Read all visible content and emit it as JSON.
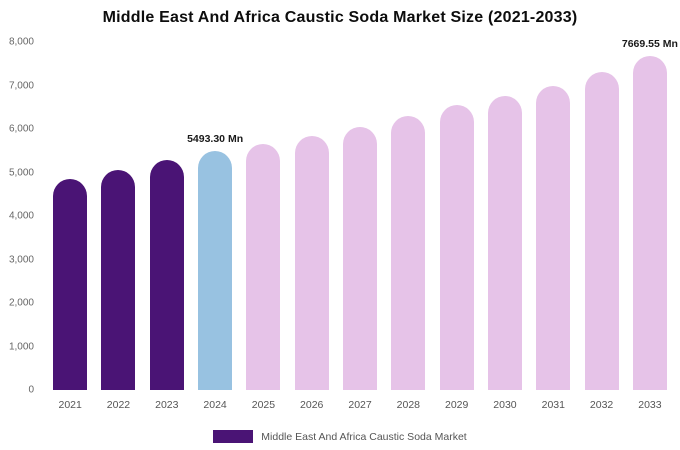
{
  "title": "Middle East And Africa Caustic Soda Market Size (2021-2033)",
  "legend": {
    "label": "Middle East And Africa Caustic Soda Market",
    "swatch_color": "#4A1475"
  },
  "colors": {
    "historical": "#4A1475",
    "current": "#98C2E1",
    "forecast": "#E6C3E8"
  },
  "chart_data": {
    "type": "bar",
    "title": "Middle East And Africa Caustic Soda Market Size (2021-2033)",
    "xlabel": "",
    "ylabel": "",
    "categories": [
      "2021",
      "2022",
      "2023",
      "2024",
      "2025",
      "2026",
      "2027",
      "2028",
      "2029",
      "2030",
      "2031",
      "2032",
      "2033"
    ],
    "values": [
      4850,
      5060,
      5280,
      5493.3,
      5650,
      5840,
      6050,
      6300,
      6550,
      6760,
      7000,
      7320,
      7669.55
    ],
    "series_colors": [
      "historical",
      "historical",
      "historical",
      "current",
      "forecast",
      "forecast",
      "forecast",
      "forecast",
      "forecast",
      "forecast",
      "forecast",
      "forecast",
      "forecast"
    ],
    "annotations": [
      {
        "category": "2024",
        "text": "5493.30 Mn"
      },
      {
        "category": "2033",
        "text": "7669.55 Mn"
      }
    ],
    "ylim": [
      0,
      8000
    ],
    "yticks": [
      0,
      1000,
      2000,
      3000,
      4000,
      5000,
      6000,
      7000,
      8000
    ],
    "ytick_labels": [
      "0",
      "1,000",
      "2,000",
      "3,000",
      "4,000",
      "5,000",
      "6,000",
      "7,000",
      "8,000"
    ],
    "grid": false,
    "legend_position": "bottom"
  }
}
